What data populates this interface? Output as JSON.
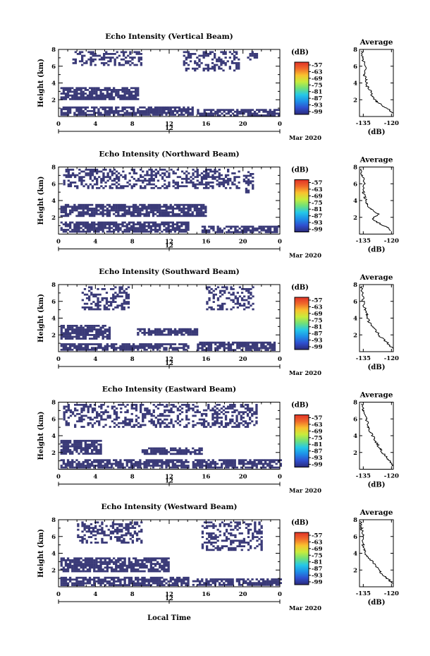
{
  "figure": {
    "xlabel": "Local Time",
    "colorbar_unit": "(dB)",
    "colorbar_ticks": [
      "-57",
      "-63",
      "-69",
      "-75",
      "-81",
      "-87",
      "-93",
      "-99"
    ],
    "colormap": [
      "#2b2a7a",
      "#2f4fcf",
      "#1e90e8",
      "#25c8e8",
      "#6fe07a",
      "#c8ec3c",
      "#f9c22e",
      "#f06a2a",
      "#e03228"
    ],
    "echo_color": "#3a3a78"
  },
  "chart_data": [
    {
      "type": "heatmap",
      "title": "Echo Intensity (Vertical Beam)",
      "ylabel": "Height (km)",
      "xlim": [
        0,
        24
      ],
      "ylim": [
        0,
        8
      ],
      "xticks": [
        "0",
        "4",
        "8",
        "12",
        "16",
        "20",
        "0"
      ],
      "xtick_values": [
        0,
        4,
        8,
        12,
        16,
        20,
        24
      ],
      "yticks": [
        "2",
        "4",
        "6",
        "8"
      ],
      "date_label": "12",
      "month_label": "Mar 2020",
      "echo_regions": [
        {
          "x": [
            0.2,
            14.5
          ],
          "y": [
            0.3,
            1.2
          ]
        },
        {
          "x": [
            0.2,
            8.5
          ],
          "y": [
            2.0,
            3.5
          ]
        },
        {
          "x": [
            15.0,
            24.0
          ],
          "y": [
            0.2,
            0.9
          ]
        },
        {
          "x": [
            1.5,
            9.0
          ],
          "y": [
            6.2,
            7.8
          ]
        },
        {
          "x": [
            13.5,
            19.5
          ],
          "y": [
            5.5,
            7.8
          ]
        },
        {
          "x": [
            20.2,
            21.5
          ],
          "y": [
            6.8,
            7.8
          ]
        }
      ],
      "average": {
        "title": "Average",
        "xlabel": "(dB)",
        "xlim": [
          -137,
          -119
        ],
        "xticks": [
          "-135",
          "-120"
        ],
        "yticks": [
          "2",
          "4",
          "6",
          "8"
        ],
        "profile": [
          {
            "h": 0.4,
            "v": -119.5
          },
          {
            "h": 0.8,
            "v": -121
          },
          {
            "h": 1.2,
            "v": -124
          },
          {
            "h": 1.8,
            "v": -128
          },
          {
            "h": 2.4,
            "v": -130
          },
          {
            "h": 3.0,
            "v": -131
          },
          {
            "h": 3.6,
            "v": -133
          },
          {
            "h": 4.4,
            "v": -133.5
          },
          {
            "h": 5.0,
            "v": -134.5
          },
          {
            "h": 6.0,
            "v": -134
          },
          {
            "h": 7.0,
            "v": -135.5
          },
          {
            "h": 7.8,
            "v": -136
          }
        ]
      }
    },
    {
      "type": "heatmap",
      "title": "Echo Intensity (Northward Beam)",
      "ylabel": "Height (km)",
      "xlim": [
        0,
        24
      ],
      "ylim": [
        0,
        8
      ],
      "xticks": [
        "0",
        "4",
        "8",
        "12",
        "16",
        "20",
        "0"
      ],
      "xtick_values": [
        0,
        4,
        8,
        12,
        16,
        20,
        24
      ],
      "yticks": [
        "2",
        "4",
        "6",
        "8"
      ],
      "date_label": "12",
      "month_label": "Mar 2020",
      "echo_regions": [
        {
          "x": [
            0.2,
            14.0
          ],
          "y": [
            0.3,
            1.5
          ]
        },
        {
          "x": [
            0.2,
            16.0
          ],
          "y": [
            2.2,
            3.6
          ]
        },
        {
          "x": [
            15.5,
            24.0
          ],
          "y": [
            0.2,
            1.0
          ]
        },
        {
          "x": [
            0.5,
            19.5
          ],
          "y": [
            5.5,
            7.8
          ]
        },
        {
          "x": [
            20.0,
            21.0
          ],
          "y": [
            5.0,
            7.5
          ]
        }
      ],
      "average": {
        "title": "Average",
        "xlabel": "(dB)",
        "xlim": [
          -137,
          -119
        ],
        "xticks": [
          "-135",
          "-120"
        ],
        "yticks": [
          "2",
          "4",
          "6",
          "8"
        ],
        "profile": [
          {
            "h": 0.4,
            "v": -120
          },
          {
            "h": 0.8,
            "v": -122
          },
          {
            "h": 1.2,
            "v": -126
          },
          {
            "h": 1.8,
            "v": -130
          },
          {
            "h": 2.4,
            "v": -127
          },
          {
            "h": 3.0,
            "v": -131
          },
          {
            "h": 3.6,
            "v": -133
          },
          {
            "h": 4.4,
            "v": -134
          },
          {
            "h": 5.0,
            "v": -135
          },
          {
            "h": 6.0,
            "v": -134.5
          },
          {
            "h": 7.0,
            "v": -135.5
          },
          {
            "h": 7.8,
            "v": -136
          }
        ]
      }
    },
    {
      "type": "heatmap",
      "title": "Echo Intensity (Southward Beam)",
      "ylabel": "Height (km)",
      "xlim": [
        0,
        24
      ],
      "ylim": [
        0,
        8
      ],
      "xticks": [
        "0",
        "4",
        "8",
        "12",
        "16",
        "20",
        "0"
      ],
      "xtick_values": [
        0,
        4,
        8,
        12,
        16,
        20,
        24
      ],
      "yticks": [
        "2",
        "4",
        "6",
        "8"
      ],
      "date_label": "12",
      "month_label": "Mar 2020",
      "echo_regions": [
        {
          "x": [
            0.2,
            14.0
          ],
          "y": [
            0.3,
            1.0
          ]
        },
        {
          "x": [
            0.2,
            5.5
          ],
          "y": [
            1.5,
            3.2
          ]
        },
        {
          "x": [
            8.5,
            15.0
          ],
          "y": [
            2.0,
            2.8
          ]
        },
        {
          "x": [
            15.0,
            23.5
          ],
          "y": [
            0.2,
            1.2
          ]
        },
        {
          "x": [
            2.5,
            7.5
          ],
          "y": [
            5.0,
            7.8
          ]
        },
        {
          "x": [
            16.0,
            21.0
          ],
          "y": [
            5.0,
            7.8
          ]
        }
      ],
      "average": {
        "title": "Average",
        "xlabel": "(dB)",
        "xlim": [
          -137,
          -119
        ],
        "xticks": [
          "-135",
          "-120"
        ],
        "yticks": [
          "2",
          "4",
          "6",
          "8"
        ],
        "profile": [
          {
            "h": 0.4,
            "v": -119.5
          },
          {
            "h": 0.8,
            "v": -121
          },
          {
            "h": 1.2,
            "v": -123
          },
          {
            "h": 1.8,
            "v": -126
          },
          {
            "h": 2.4,
            "v": -128
          },
          {
            "h": 3.0,
            "v": -130
          },
          {
            "h": 3.6,
            "v": -132
          },
          {
            "h": 4.4,
            "v": -133
          },
          {
            "h": 5.0,
            "v": -134
          },
          {
            "h": 6.0,
            "v": -135
          },
          {
            "h": 7.0,
            "v": -135.5
          },
          {
            "h": 7.8,
            "v": -136
          }
        ]
      }
    },
    {
      "type": "heatmap",
      "title": "Echo Intensity (Eastward Beam)",
      "ylabel": "Height (km)",
      "xlim": [
        0,
        24
      ],
      "ylim": [
        0,
        8
      ],
      "xticks": [
        "0",
        "4",
        "8",
        "12",
        "16",
        "20",
        "0"
      ],
      "xtick_values": [
        0,
        4,
        8,
        12,
        16,
        20,
        24
      ],
      "yticks": [
        "2",
        "4",
        "6",
        "8"
      ],
      "date_label": "12",
      "month_label": "Mar 2020",
      "echo_regions": [
        {
          "x": [
            0.2,
            14.0
          ],
          "y": [
            0.3,
            1.2
          ]
        },
        {
          "x": [
            0.2,
            4.5
          ],
          "y": [
            1.8,
            3.5
          ]
        },
        {
          "x": [
            9.0,
            15.5
          ],
          "y": [
            1.8,
            2.6
          ]
        },
        {
          "x": [
            14.5,
            24.0
          ],
          "y": [
            0.2,
            1.2
          ]
        },
        {
          "x": [
            0.5,
            21.5
          ],
          "y": [
            5.0,
            7.8
          ]
        }
      ],
      "average": {
        "title": "Average",
        "xlabel": "(dB)",
        "xlim": [
          -137,
          -119
        ],
        "xticks": [
          "-135",
          "-120"
        ],
        "yticks": [
          "2",
          "4",
          "6",
          "8"
        ],
        "profile": [
          {
            "h": 0.4,
            "v": -119.5
          },
          {
            "h": 0.8,
            "v": -120.5
          },
          {
            "h": 1.2,
            "v": -122
          },
          {
            "h": 1.8,
            "v": -124
          },
          {
            "h": 2.4,
            "v": -126
          },
          {
            "h": 3.0,
            "v": -127.5
          },
          {
            "h": 3.6,
            "v": -129
          },
          {
            "h": 4.4,
            "v": -131
          },
          {
            "h": 5.0,
            "v": -132
          },
          {
            "h": 6.0,
            "v": -133.5
          },
          {
            "h": 7.0,
            "v": -135
          },
          {
            "h": 7.8,
            "v": -136
          }
        ]
      }
    },
    {
      "type": "heatmap",
      "title": "Echo Intensity (Westward Beam)",
      "ylabel": "Height (km)",
      "xlim": [
        0,
        24
      ],
      "ylim": [
        0,
        8
      ],
      "xticks": [
        "0",
        "4",
        "8",
        "12",
        "16",
        "20",
        "0"
      ],
      "xtick_values": [
        0,
        4,
        8,
        12,
        16,
        20,
        24
      ],
      "yticks": [
        "2",
        "4",
        "6",
        "8"
      ],
      "date_label": "12",
      "month_label": "Mar 2020",
      "echo_regions": [
        {
          "x": [
            0.2,
            14.0
          ],
          "y": [
            0.3,
            1.2
          ]
        },
        {
          "x": [
            0.2,
            12.0
          ],
          "y": [
            1.8,
            3.5
          ]
        },
        {
          "x": [
            14.5,
            24.0
          ],
          "y": [
            0.2,
            1.0
          ]
        },
        {
          "x": [
            2.0,
            9.0
          ],
          "y": [
            5.2,
            7.8
          ]
        },
        {
          "x": [
            15.5,
            22.0
          ],
          "y": [
            4.5,
            7.8
          ]
        }
      ],
      "average": {
        "title": "Average",
        "xlabel": "(dB)",
        "xlim": [
          -137,
          -119
        ],
        "xticks": [
          "-135",
          "-120"
        ],
        "yticks": [
          "2",
          "4",
          "6",
          "8"
        ],
        "profile": [
          {
            "h": 0.4,
            "v": -119.5
          },
          {
            "h": 0.8,
            "v": -121
          },
          {
            "h": 1.2,
            "v": -123.5
          },
          {
            "h": 1.8,
            "v": -126
          },
          {
            "h": 2.4,
            "v": -128
          },
          {
            "h": 3.0,
            "v": -130
          },
          {
            "h": 3.6,
            "v": -133
          },
          {
            "h": 4.4,
            "v": -134.5
          },
          {
            "h": 5.0,
            "v": -135
          },
          {
            "h": 6.0,
            "v": -135
          },
          {
            "h": 7.0,
            "v": -136
          },
          {
            "h": 7.8,
            "v": -136.5
          }
        ]
      }
    }
  ]
}
